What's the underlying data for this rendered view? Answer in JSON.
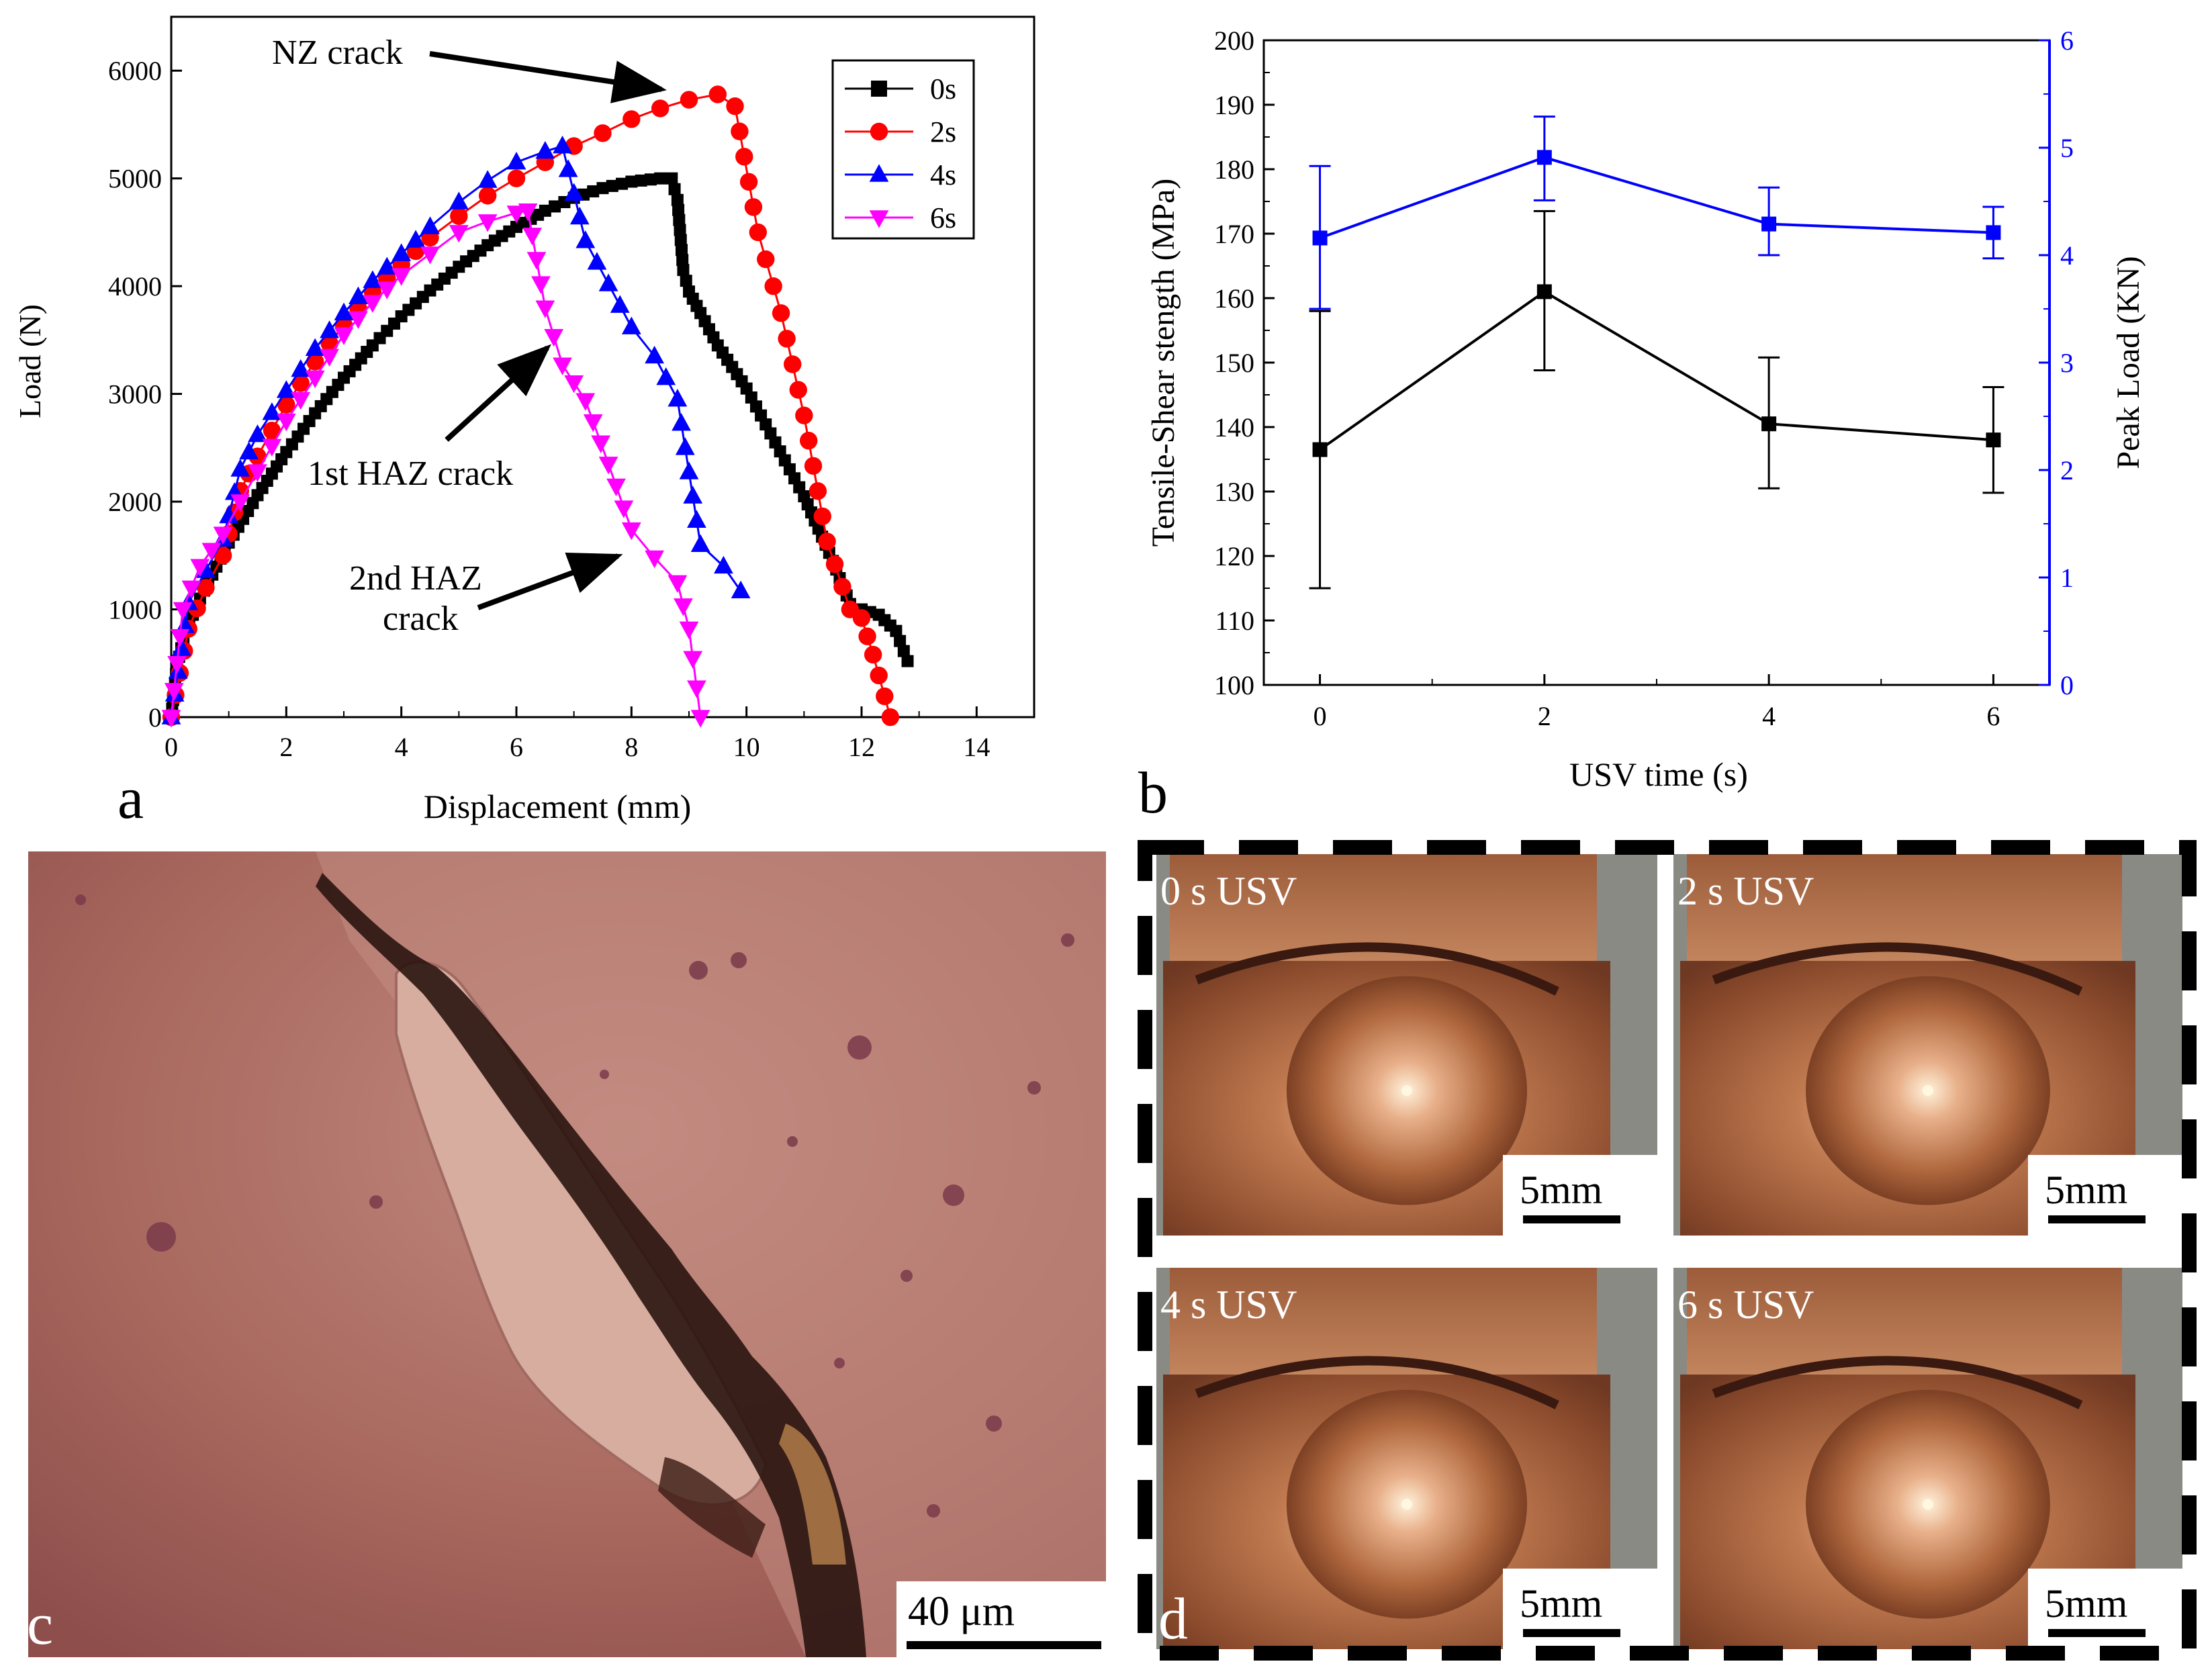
{
  "colors": {
    "series_0s": "#000000",
    "series_2s": "#ff0000",
    "series_4s": "#0000ff",
    "series_6s": "#ff00ff",
    "right_axis": "#0000ff"
  },
  "panel_labels": {
    "a": "a",
    "b": "b",
    "c": "c",
    "d": "d"
  },
  "chart_data": [
    {
      "type": "line",
      "panel": "a",
      "xlabel": "Displacement (mm)",
      "ylabel": "Load (N)",
      "xlim": [
        0,
        15
      ],
      "ylim": [
        0,
        6500
      ],
      "xticks": [
        0,
        2,
        4,
        6,
        8,
        10,
        12,
        14
      ],
      "yticks": [
        0,
        1000,
        2000,
        3000,
        4000,
        5000,
        6000
      ],
      "legend": [
        "0s",
        "2s",
        "4s",
        "6s"
      ],
      "annotations": [
        "NZ crack",
        "1st HAZ crack",
        "2nd HAZ crack"
      ],
      "series": [
        {
          "name": "0s",
          "marker": "square",
          "points": [
            [
              0,
              0
            ],
            [
              0.1,
              480
            ],
            [
              0.25,
              800
            ],
            [
              0.5,
              1100
            ],
            [
              1,
              1620
            ],
            [
              1.5,
              2060
            ],
            [
              2,
              2460
            ],
            [
              2.5,
              2820
            ],
            [
              3,
              3150
            ],
            [
              3.5,
              3450
            ],
            [
              4,
              3720
            ],
            [
              4.5,
              3960
            ],
            [
              5,
              4180
            ],
            [
              5.5,
              4380
            ],
            [
              6,
              4550
            ],
            [
              6.5,
              4700
            ],
            [
              7,
              4820
            ],
            [
              7.5,
              4910
            ],
            [
              8,
              4970
            ],
            [
              8.5,
              5000
            ],
            [
              8.7,
              5000
            ],
            [
              8.8,
              4800
            ],
            [
              8.9,
              4150
            ],
            [
              9,
              3950
            ],
            [
              9.2,
              3750
            ],
            [
              9.5,
              3450
            ],
            [
              10,
              3050
            ],
            [
              10.5,
              2550
            ],
            [
              11,
              2050
            ],
            [
              11.5,
              1450
            ],
            [
              11.8,
              1050
            ],
            [
              12,
              1000
            ],
            [
              12.3,
              950
            ],
            [
              12.6,
              800
            ],
            [
              12.8,
              520
            ]
          ]
        },
        {
          "name": "2s",
          "marker": "circle",
          "points": [
            [
              0,
              0
            ],
            [
              0.3,
              820
            ],
            [
              0.6,
              1200
            ],
            [
              0.9,
              1500
            ],
            [
              1.2,
              2100
            ],
            [
              1.5,
              2420
            ],
            [
              2,
              2900
            ],
            [
              2.5,
              3300
            ],
            [
              3,
              3640
            ],
            [
              3.5,
              3950
            ],
            [
              4,
              4200
            ],
            [
              4.5,
              4450
            ],
            [
              5,
              4650
            ],
            [
              5.5,
              4840
            ],
            [
              6,
              5000
            ],
            [
              6.5,
              5150
            ],
            [
              7,
              5300
            ],
            [
              7.5,
              5420
            ],
            [
              8,
              5550
            ],
            [
              8.5,
              5650
            ],
            [
              9,
              5730
            ],
            [
              9.5,
              5780
            ],
            [
              9.8,
              5670
            ],
            [
              10.2,
              4500
            ],
            [
              10.6,
              3750
            ],
            [
              11,
              2800
            ],
            [
              11.4,
              1630
            ],
            [
              11.8,
              1000
            ],
            [
              12,
              920
            ],
            [
              12.2,
              580
            ],
            [
              12.5,
              0
            ]
          ]
        },
        {
          "name": "4s",
          "marker": "triangle-up",
          "points": [
            [
              0,
              0
            ],
            [
              0.3,
              1060
            ],
            [
              0.6,
              1360
            ],
            [
              0.9,
              1650
            ],
            [
              1.2,
              2300
            ],
            [
              1.5,
              2620
            ],
            [
              2,
              3030
            ],
            [
              2.5,
              3420
            ],
            [
              3,
              3750
            ],
            [
              3.5,
              4050
            ],
            [
              4,
              4300
            ],
            [
              4.5,
              4550
            ],
            [
              5,
              4780
            ],
            [
              5.5,
              4980
            ],
            [
              6,
              5150
            ],
            [
              6.5,
              5250
            ],
            [
              6.8,
              5300
            ],
            [
              7.2,
              4420
            ],
            [
              7.6,
              4020
            ],
            [
              8,
              3620
            ],
            [
              8.4,
              3350
            ],
            [
              8.8,
              2950
            ],
            [
              9.2,
              1600
            ],
            [
              9.6,
              1400
            ],
            [
              9.9,
              1170
            ]
          ]
        },
        {
          "name": "6s",
          "marker": "triangle-down",
          "points": [
            [
              0,
              0
            ],
            [
              0.2,
              1000
            ],
            [
              0.5,
              1400
            ],
            [
              0.9,
              1700
            ],
            [
              1.2,
              2000
            ],
            [
              1.5,
              2280
            ],
            [
              2,
              2750
            ],
            [
              2.5,
              3150
            ],
            [
              3,
              3550
            ],
            [
              3.5,
              3850
            ],
            [
              4,
              4100
            ],
            [
              4.5,
              4300
            ],
            [
              5,
              4500
            ],
            [
              5.5,
              4600
            ],
            [
              6,
              4680
            ],
            [
              6.2,
              4700
            ],
            [
              6.5,
              3800
            ],
            [
              6.8,
              3270
            ],
            [
              7.2,
              2940
            ],
            [
              7.6,
              2350
            ],
            [
              8,
              1740
            ],
            [
              8.4,
              1480
            ],
            [
              8.8,
              1250
            ],
            [
              9,
              820
            ],
            [
              9.2,
              0
            ]
          ]
        }
      ]
    },
    {
      "type": "line",
      "panel": "b",
      "xlabel": "USV time (s)",
      "ylabel": "Tensile-Shear stength (MPa)",
      "y2label": "Peak Load (KN)",
      "xticks": [
        0,
        2,
        4,
        6
      ],
      "xlim": [
        -0.5,
        6.5
      ],
      "ylim": [
        100,
        200
      ],
      "yticks": [
        100,
        110,
        120,
        130,
        140,
        150,
        160,
        170,
        180,
        190,
        200
      ],
      "y2lim": [
        0,
        6
      ],
      "y2ticks": [
        0,
        1,
        2,
        3,
        4,
        5,
        6
      ],
      "series": [
        {
          "name": "Tensile-Shear strength",
          "axis": "left",
          "x": [
            0,
            2,
            4,
            6
          ],
          "y": [
            136.5,
            161,
            140.5,
            138
          ],
          "err_low": [
            115,
            148.8,
            130.5,
            129.8
          ],
          "err_high": [
            158,
            173.5,
            150.8,
            146.2
          ]
        },
        {
          "name": "Peak Load",
          "axis": "right",
          "x": [
            0,
            2,
            4,
            6
          ],
          "y": [
            4.16,
            4.91,
            4.29,
            4.21
          ],
          "err_low": [
            3.5,
            4.51,
            4.0,
            3.97
          ],
          "err_high": [
            4.83,
            5.29,
            4.63,
            4.45
          ]
        }
      ]
    }
  ],
  "micrograph": {
    "scale_label": "40  μm"
  },
  "fracture_photos": {
    "labels": [
      "0 s USV",
      "2 s USV",
      "4 s USV",
      "6 s USV"
    ],
    "scale_label": "5mm"
  }
}
